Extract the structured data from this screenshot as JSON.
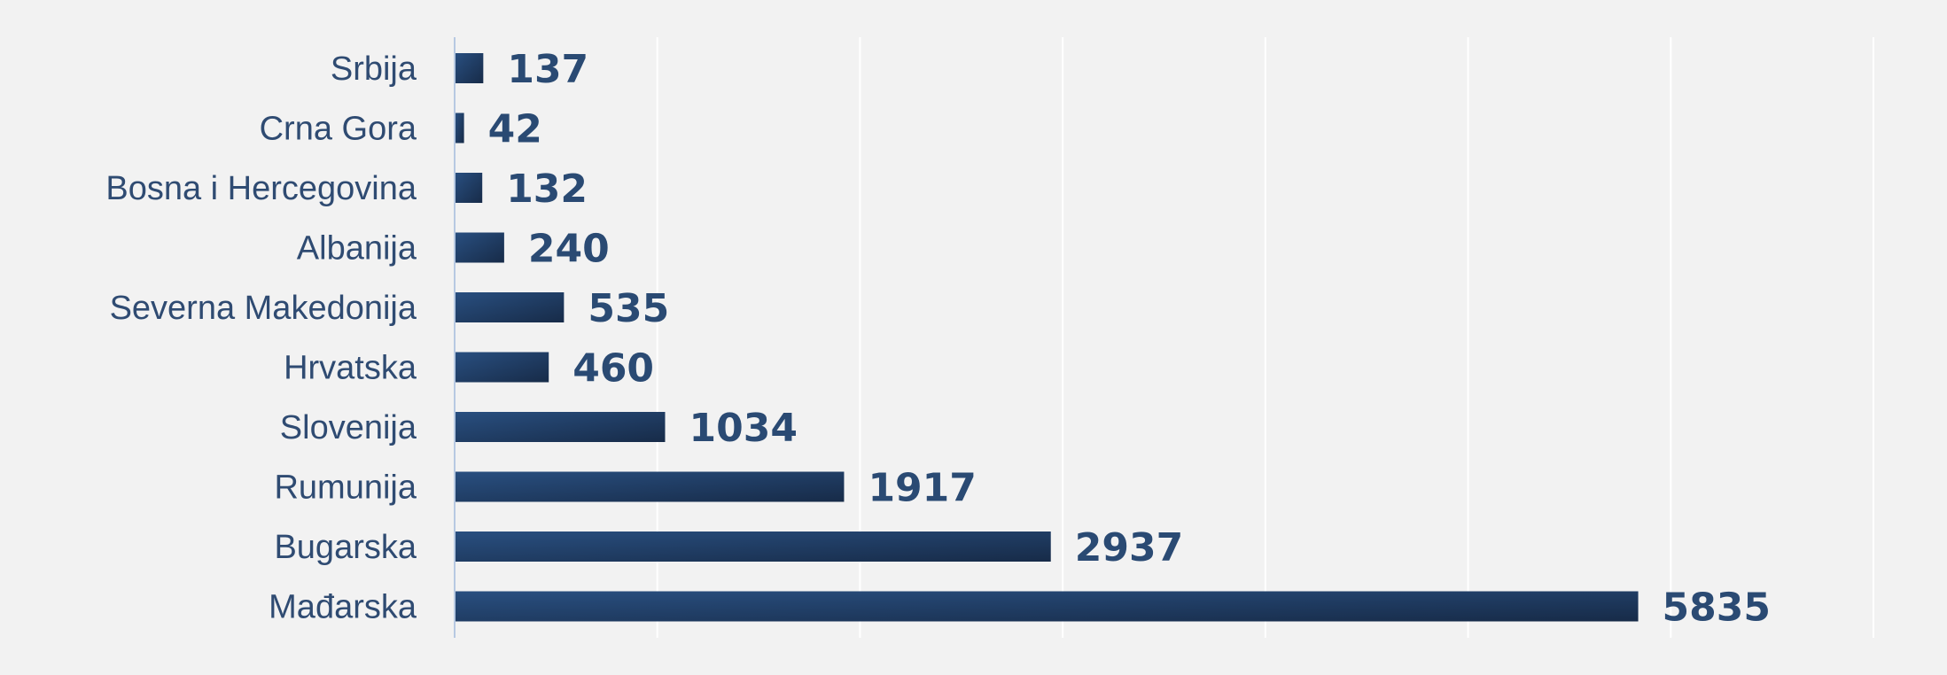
{
  "chart_data": {
    "type": "bar",
    "orientation": "horizontal",
    "categories": [
      "Srbija",
      "Crna Gora",
      "Bosna i Hercegovina",
      "Albanija",
      "Severna Makedonija",
      "Hrvatska",
      "Slovenija",
      "Rumunija",
      "Bugarska",
      "Mađarska"
    ],
    "values": [
      137,
      42,
      132,
      240,
      535,
      460,
      1034,
      1917,
      2937,
      5835
    ],
    "xlim": [
      0,
      7000
    ],
    "grid": true,
    "legend": "none",
    "data_labels": true,
    "colors": {
      "bar_start": "#294f80",
      "bar_end": "#172b48",
      "label": "#2f4b72",
      "value_label": "#2a4a73",
      "grid": "#ffffff",
      "axis": "#b7c9e2",
      "background": "#f2f2f2"
    }
  }
}
